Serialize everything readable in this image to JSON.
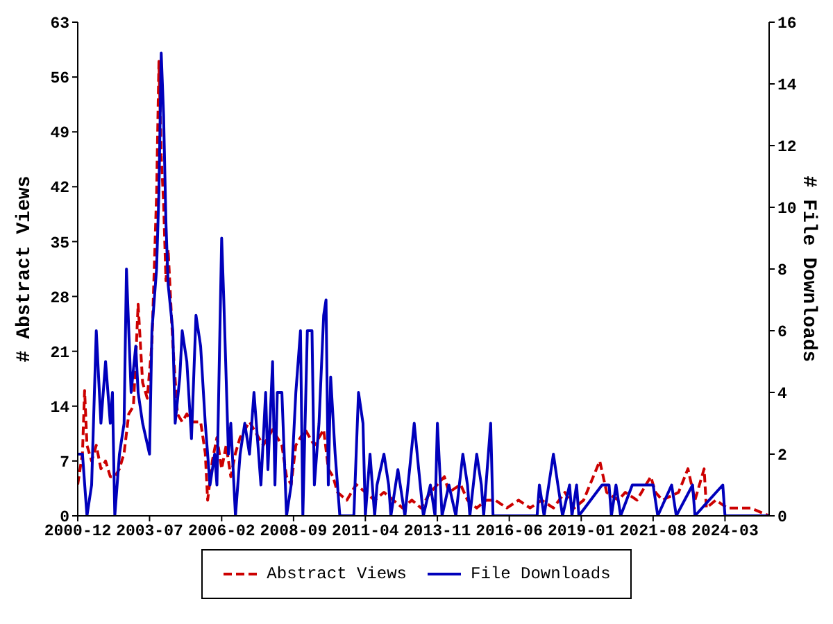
{
  "chart_data": {
    "type": "line",
    "ylabel": "# Abstract Views",
    "y2label": "# File Downloads",
    "xlim": [
      "2000-12",
      "2025-10"
    ],
    "xticks": [
      "2000-12",
      "2003-07",
      "2006-02",
      "2008-09",
      "2011-04",
      "2013-11",
      "2016-06",
      "2019-01",
      "2021-08",
      "2024-03"
    ],
    "ylim": [
      0,
      63
    ],
    "yticks": [
      0,
      7,
      14,
      21,
      28,
      35,
      42,
      49,
      56,
      63
    ],
    "y2lim": [
      0,
      16
    ],
    "y2ticks": [
      0,
      2,
      4,
      6,
      8,
      10,
      12,
      14,
      16
    ],
    "legend": "bottom",
    "series": [
      {
        "name": "Abstract Views",
        "color": "#cc0000",
        "line_style": "dashed",
        "axis": "y",
        "x": [
          "2000-12",
          "2001-02",
          "2001-03",
          "2001-04",
          "2001-06",
          "2001-08",
          "2001-10",
          "2001-12",
          "2002-02",
          "2002-04",
          "2002-06",
          "2002-08",
          "2002-10",
          "2002-12",
          "2003-01",
          "2003-02",
          "2003-04",
          "2003-06",
          "2003-08",
          "2003-10",
          "2003-11",
          "2003-12",
          "2004-01",
          "2004-02",
          "2004-03",
          "2004-05",
          "2004-07",
          "2004-09",
          "2004-11",
          "2005-01",
          "2005-03",
          "2005-05",
          "2005-07",
          "2005-08",
          "2005-10",
          "2005-12",
          "2006-02",
          "2006-04",
          "2006-06",
          "2006-08",
          "2006-10",
          "2006-12",
          "2007-02",
          "2007-04",
          "2007-06",
          "2007-08",
          "2007-10",
          "2007-12",
          "2008-02",
          "2008-04",
          "2008-06",
          "2008-08",
          "2008-10",
          "2008-12",
          "2009-02",
          "2009-04",
          "2009-06",
          "2009-08",
          "2009-10",
          "2009-12",
          "2010-02",
          "2010-04",
          "2010-08",
          "2010-12",
          "2011-04",
          "2011-08",
          "2011-12",
          "2012-04",
          "2012-08",
          "2012-12",
          "2013-04",
          "2013-08",
          "2013-11",
          "2014-02",
          "2014-04",
          "2014-09",
          "2014-12",
          "2015-04",
          "2015-08",
          "2015-12",
          "2016-05",
          "2016-10",
          "2017-03",
          "2017-08",
          "2018-01",
          "2018-06",
          "2018-10",
          "2019-02",
          "2019-09",
          "2019-12",
          "2020-05",
          "2020-08",
          "2021-01",
          "2021-07",
          "2021-09",
          "2021-12",
          "2022-07",
          "2022-11",
          "2023-02",
          "2023-06",
          "2023-07",
          "2023-11",
          "2024-04",
          "2024-09",
          "2025-02",
          "2025-10"
        ],
        "values": [
          4,
          8,
          16,
          9,
          7,
          9,
          6,
          7,
          5,
          5,
          6,
          8,
          13,
          14,
          20,
          27,
          17,
          15,
          22,
          41,
          58,
          46,
          40,
          30,
          34,
          22,
          13,
          12,
          13,
          12,
          12,
          12,
          8,
          2,
          7,
          10,
          6,
          9,
          5,
          8,
          10,
          11,
          12,
          11,
          10,
          9,
          10,
          11,
          10,
          9,
          5,
          4,
          9,
          10,
          11,
          10,
          9,
          10,
          11,
          6,
          5,
          3,
          2,
          4,
          3,
          2,
          3,
          2,
          1,
          2,
          1,
          3,
          4,
          5,
          3,
          4,
          2,
          1,
          2,
          2,
          1,
          2,
          1,
          2,
          1,
          3,
          1,
          2,
          7,
          3,
          2,
          3,
          2,
          5,
          3,
          2,
          3,
          6,
          2,
          6,
          1,
          2,
          1,
          1,
          1,
          0
        ]
      },
      {
        "name": "File Downloads",
        "color": "#0000bb",
        "line_style": "solid",
        "axis": "y2",
        "x": [
          "2000-12",
          "2001-02",
          "2001-04",
          "2001-06",
          "2001-08",
          "2001-10",
          "2001-12",
          "2002-02",
          "2002-03",
          "2002-04",
          "2002-06",
          "2002-08",
          "2002-09",
          "2002-11",
          "2003-01",
          "2003-02",
          "2003-04",
          "2003-07",
          "2003-08",
          "2003-10",
          "2003-11",
          "2003-12",
          "2004-01",
          "2004-02",
          "2004-03",
          "2004-05",
          "2004-06",
          "2004-08",
          "2004-09",
          "2004-11",
          "2005-01",
          "2005-03",
          "2005-05",
          "2005-07",
          "2005-09",
          "2005-11",
          "2005-12",
          "2006-02",
          "2006-03",
          "2006-05",
          "2006-06",
          "2006-08",
          "2006-10",
          "2006-12",
          "2007-02",
          "2007-04",
          "2007-06",
          "2007-07",
          "2007-09",
          "2007-10",
          "2007-12",
          "2008-01",
          "2008-02",
          "2008-04",
          "2008-06",
          "2008-08",
          "2008-10",
          "2008-12",
          "2009-01",
          "2009-03",
          "2009-05",
          "2009-06",
          "2009-08",
          "2009-10",
          "2009-11",
          "2009-12",
          "2010-01",
          "2010-03",
          "2010-05",
          "2010-11",
          "2011-01",
          "2011-03",
          "2011-04",
          "2011-06",
          "2011-08",
          "2011-09",
          "2011-12",
          "2012-02",
          "2012-03",
          "2012-06",
          "2012-09",
          "2013-01",
          "2013-03",
          "2013-05",
          "2013-08",
          "2013-10",
          "2013-11",
          "2014-01",
          "2014-04",
          "2014-07",
          "2014-10",
          "2014-12",
          "2015-01",
          "2015-04",
          "2015-06",
          "2015-07",
          "2015-10",
          "2015-11",
          "2017-06",
          "2017-07",
          "2017-09",
          "2018-01",
          "2018-03",
          "2018-05",
          "2018-08",
          "2018-09",
          "2018-11",
          "2018-12",
          "2019-10",
          "2020-01",
          "2020-02",
          "2020-04",
          "2020-06",
          "2020-11",
          "2021-08",
          "2021-10",
          "2022-04",
          "2022-06",
          "2023-01",
          "2023-02",
          "2024-02",
          "2024-03",
          "2025-10"
        ],
        "values": [
          2,
          2,
          0,
          1,
          6,
          3,
          5,
          3,
          4,
          0,
          2,
          3,
          8,
          4,
          5.5,
          4,
          3,
          2,
          6,
          8,
          10.5,
          15,
          13,
          9.5,
          7.5,
          6,
          3,
          4.5,
          6,
          5,
          2.5,
          6.5,
          5.5,
          3,
          1,
          2,
          1,
          9,
          7,
          2,
          3,
          0,
          2,
          3,
          2,
          4,
          2,
          1,
          4,
          1.5,
          5,
          1,
          4,
          4,
          0,
          1,
          4,
          6,
          0,
          6,
          6,
          1,
          3,
          6.5,
          7,
          1,
          4.5,
          2,
          0,
          0,
          4,
          3,
          0,
          2,
          0,
          1,
          2,
          1,
          0,
          1.5,
          0,
          3,
          1.5,
          0,
          1,
          0,
          3,
          0,
          1,
          0,
          2,
          1,
          0,
          2,
          1,
          0,
          3,
          0,
          0,
          1,
          0,
          2,
          1,
          0,
          1,
          0,
          1,
          0,
          1,
          1,
          0,
          1,
          0,
          1,
          1,
          0,
          1,
          0,
          1,
          0,
          1,
          0,
          0
        ]
      }
    ]
  }
}
